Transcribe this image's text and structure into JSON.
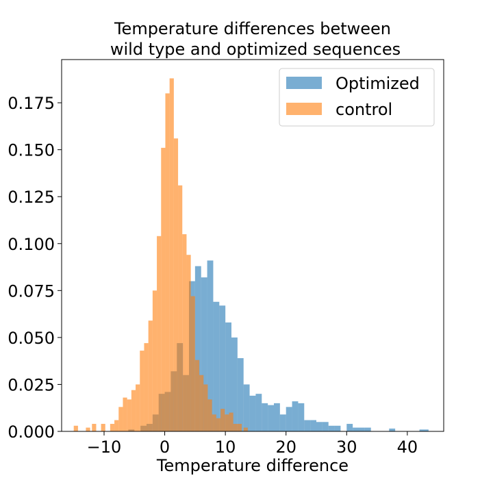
{
  "chart_data": {
    "type": "bar",
    "title_line1": "Temperature differences between",
    "title_line2": "wild type and optimized sequences",
    "xlabel": "Temperature difference",
    "ylabel": "",
    "xlim": [
      -17,
      46
    ],
    "ylim": [
      0,
      0.198
    ],
    "xticks": [
      -10,
      0,
      10,
      20,
      30,
      40
    ],
    "xtick_labels": [
      "−10",
      "0",
      "10",
      "20",
      "30",
      "40"
    ],
    "yticks": [
      0,
      0.025,
      0.05,
      0.075,
      0.1,
      0.125,
      0.15,
      0.175
    ],
    "ytick_labels": [
      "0.000",
      "0.025",
      "0.050",
      "0.075",
      "0.100",
      "0.125",
      "0.150",
      "0.175"
    ],
    "legend_position": "top-right",
    "grid": false,
    "series": [
      {
        "name": "Optimized",
        "color": "#1f77b4",
        "alpha": 0.6,
        "bins": [
          [
            -6,
            -5,
            0.001
          ],
          [
            -5,
            -4,
            0.0
          ],
          [
            -4,
            -3,
            0.003
          ],
          [
            -3,
            -2,
            0.004
          ],
          [
            -2,
            -1,
            0.009
          ],
          [
            -1,
            0,
            0.02
          ],
          [
            0,
            1,
            0.021
          ],
          [
            1,
            2,
            0.032
          ],
          [
            2,
            3,
            0.047
          ],
          [
            3,
            4,
            0.03
          ],
          [
            4,
            5,
            0.08
          ],
          [
            5,
            6,
            0.088
          ],
          [
            6,
            7,
            0.082
          ],
          [
            7,
            8,
            0.091
          ],
          [
            8,
            9,
            0.069
          ],
          [
            9,
            10,
            0.067
          ],
          [
            10,
            11,
            0.058
          ],
          [
            11,
            12,
            0.05
          ],
          [
            12,
            13,
            0.039
          ],
          [
            13,
            14,
            0.025
          ],
          [
            14,
            15,
            0.019
          ],
          [
            15,
            16,
            0.02
          ],
          [
            16,
            17,
            0.015
          ],
          [
            17,
            18,
            0.014
          ],
          [
            18,
            19,
            0.015
          ],
          [
            19,
            20,
            0.009
          ],
          [
            20,
            21,
            0.013
          ],
          [
            21,
            22,
            0.016
          ],
          [
            22,
            23,
            0.015
          ],
          [
            23,
            24,
            0.006
          ],
          [
            24,
            25,
            0.006
          ],
          [
            25,
            26,
            0.005
          ],
          [
            26,
            27,
            0.005
          ],
          [
            27,
            28,
            0.003
          ],
          [
            28,
            29,
            0.003
          ],
          [
            29,
            30,
            0.0
          ],
          [
            30,
            31,
            0.004
          ],
          [
            31,
            32,
            0.002
          ],
          [
            32,
            33,
            0.002
          ],
          [
            33,
            34,
            0.002
          ],
          [
            37,
            38,
            0.0015
          ],
          [
            42,
            43.5,
            0.001
          ]
        ]
      },
      {
        "name": "control",
        "color": "#ff7f0e",
        "alpha": 0.6,
        "bins": [
          [
            -15,
            -14.3,
            0.003
          ],
          [
            -13,
            -12.3,
            0.002
          ],
          [
            -12,
            -11.3,
            0.004
          ],
          [
            -10.5,
            -9.8,
            0.004
          ],
          [
            -9,
            -8.3,
            0.004
          ],
          [
            -8.3,
            -7.6,
            0.006
          ],
          [
            -7.6,
            -6.9,
            0.013
          ],
          [
            -6.9,
            -6.2,
            0.018
          ],
          [
            -6.2,
            -5.5,
            0.017
          ],
          [
            -5.5,
            -4.8,
            0.022
          ],
          [
            -4.8,
            -4.1,
            0.025
          ],
          [
            -4.1,
            -3.4,
            0.043
          ],
          [
            -3.4,
            -2.7,
            0.047
          ],
          [
            -2.7,
            -2.0,
            0.059
          ],
          [
            -2.0,
            -1.3,
            0.075
          ],
          [
            -1.3,
            -0.6,
            0.104
          ],
          [
            -0.6,
            0.1,
            0.151
          ],
          [
            0.1,
            0.8,
            0.18
          ],
          [
            0.8,
            1.5,
            0.188
          ],
          [
            1.5,
            2.2,
            0.156
          ],
          [
            2.2,
            2.9,
            0.131
          ],
          [
            2.9,
            3.6,
            0.105
          ],
          [
            3.6,
            4.3,
            0.094
          ],
          [
            4.3,
            5.0,
            0.072
          ],
          [
            5.0,
            5.7,
            0.038
          ],
          [
            5.7,
            6.4,
            0.03
          ],
          [
            6.4,
            7.1,
            0.025
          ],
          [
            7.1,
            7.8,
            0.017
          ],
          [
            7.8,
            8.5,
            0.009
          ],
          [
            8.5,
            9.2,
            0.007
          ],
          [
            9.2,
            9.9,
            0.012
          ],
          [
            9.9,
            10.6,
            0.009
          ],
          [
            10.6,
            11.3,
            0.01
          ],
          [
            11.3,
            12.0,
            0.004
          ],
          [
            12.0,
            12.7,
            0.004
          ],
          [
            13.0,
            13.7,
            0.002
          ]
        ]
      }
    ]
  }
}
